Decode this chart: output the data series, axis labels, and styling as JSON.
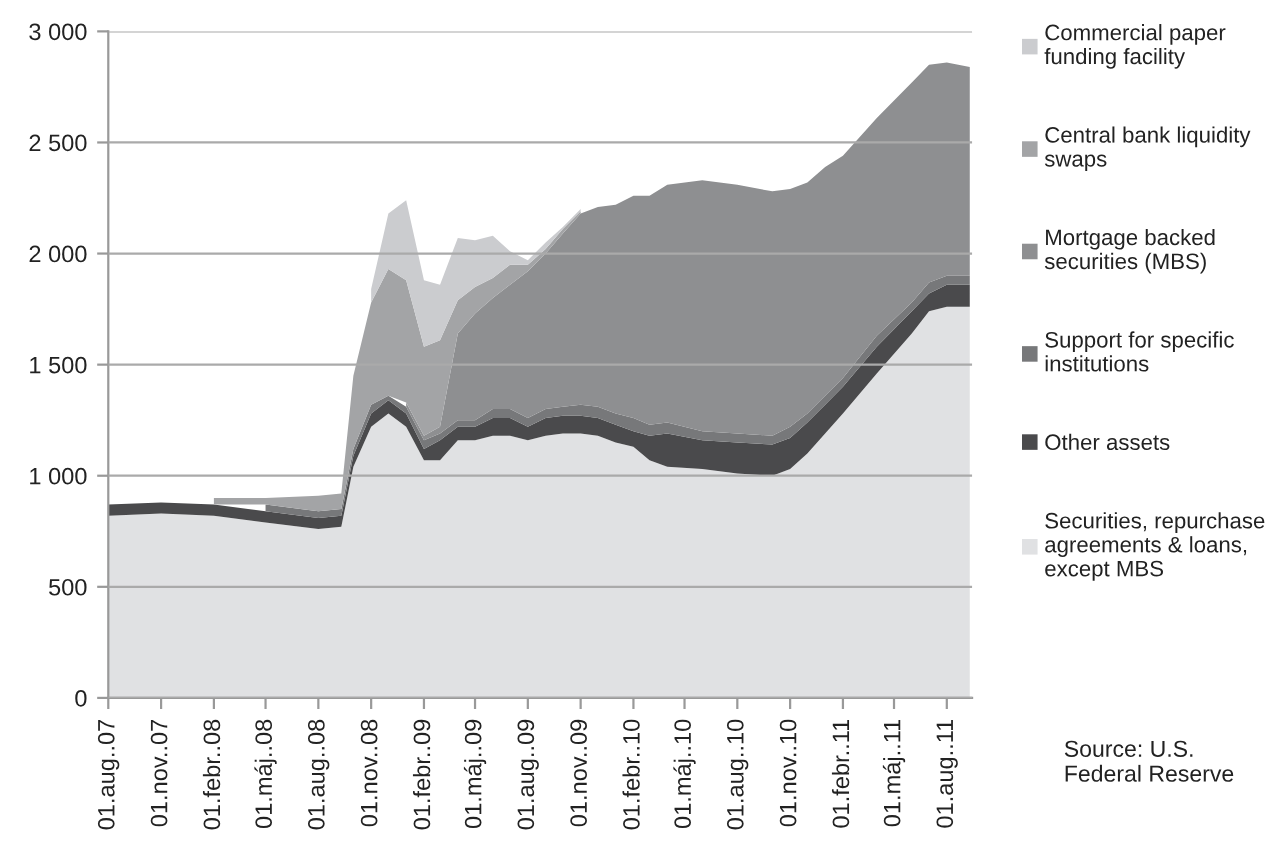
{
  "chart_data": {
    "type": "area",
    "stacked": true,
    "x": [
      "2007-08-01",
      "2007-11-01",
      "2008-02-01",
      "2008-05-01",
      "2008-08-01",
      "2008-09-10",
      "2008-10-01",
      "2008-11-01",
      "2008-12-01",
      "2009-01-01",
      "2009-02-01",
      "2009-03-01",
      "2009-04-01",
      "2009-05-01",
      "2009-06-01",
      "2009-07-01",
      "2009-08-01",
      "2009-09-01",
      "2009-10-01",
      "2009-11-01",
      "2009-12-01",
      "2010-01-01",
      "2010-02-01",
      "2010-03-01",
      "2010-04-01",
      "2010-06-01",
      "2010-08-01",
      "2010-10-01",
      "2010-11-01",
      "2010-12-01",
      "2011-01-01",
      "2011-02-01",
      "2011-04-01",
      "2011-06-01",
      "2011-07-01",
      "2011-08-01",
      "2011-09-10"
    ],
    "series": [
      {
        "name": "Securities, repurchase\nagreements & loans,\nexcept MBS",
        "color": "#e0e1e3",
        "values": [
          820,
          830,
          820,
          790,
          760,
          770,
          1040,
          1220,
          1280,
          1220,
          1070,
          1070,
          1160,
          1160,
          1180,
          1180,
          1160,
          1180,
          1190,
          1190,
          1180,
          1150,
          1130,
          1070,
          1040,
          1030,
          1010,
          1000,
          1030,
          1100,
          1190,
          1280,
          1460,
          1640,
          1740,
          1760,
          1760
        ]
      },
      {
        "name": "Other assets",
        "color": "#4a4a4c",
        "values": [
          50,
          50,
          50,
          50,
          50,
          50,
          50,
          60,
          60,
          60,
          50,
          90,
          60,
          60,
          80,
          80,
          60,
          80,
          80,
          80,
          80,
          80,
          70,
          110,
          150,
          130,
          140,
          140,
          140,
          140,
          130,
          120,
          120,
          100,
          80,
          100,
          100
        ]
      },
      {
        "name": "Support for specific\ninstitutions",
        "color": "#77787a",
        "values": [
          null,
          null,
          null,
          30,
          30,
          30,
          30,
          40,
          20,
          30,
          40,
          30,
          30,
          30,
          40,
          40,
          40,
          40,
          40,
          50,
          50,
          50,
          60,
          50,
          50,
          40,
          40,
          40,
          50,
          40,
          40,
          40,
          50,
          40,
          50,
          40,
          40
        ]
      },
      {
        "name": "Mortgage backed\nsecurities (MBS)",
        "color": "#8e8f91",
        "values": [
          null,
          null,
          null,
          null,
          null,
          null,
          null,
          null,
          null,
          20,
          20,
          30,
          390,
          480,
          500,
          560,
          660,
          700,
          780,
          860,
          900,
          940,
          1000,
          1030,
          1070,
          1130,
          1120,
          1100,
          1070,
          1040,
          1030,
          1000,
          980,
          990,
          980,
          960,
          940
        ]
      },
      {
        "name": "Central bank liquidity\nswaps",
        "color": "#a3a4a6",
        "values": [
          null,
          null,
          30,
          30,
          70,
          70,
          330,
          460,
          570,
          550,
          400,
          390,
          150,
          120,
          90,
          90,
          30,
          20,
          20,
          10,
          null,
          null,
          null,
          null,
          null,
          null,
          null,
          null,
          null,
          null,
          null,
          null,
          null,
          null,
          null,
          null,
          null
        ]
      },
      {
        "name": "Commercial paper\nfunding facility",
        "color": "#cbcccf",
        "values": [
          null,
          null,
          null,
          null,
          null,
          null,
          null,
          60,
          250,
          360,
          300,
          250,
          280,
          210,
          190,
          60,
          20,
          30,
          10,
          10,
          null,
          null,
          null,
          null,
          null,
          null,
          null,
          null,
          null,
          null,
          null,
          null,
          null,
          null,
          null,
          null,
          null
        ]
      }
    ],
    "xlim": [
      "2007-08-01",
      "2011-09-14"
    ],
    "xticks": [
      {
        "value": "2007-08-01",
        "label": "01.aug..07"
      },
      {
        "value": "2007-11-01",
        "label": "01.nov..07"
      },
      {
        "value": "2008-02-01",
        "label": "01.febr..08"
      },
      {
        "value": "2008-05-01",
        "label": "01.máj..08"
      },
      {
        "value": "2008-08-01",
        "label": "01.aug..08"
      },
      {
        "value": "2008-11-01",
        "label": "01.nov..08"
      },
      {
        "value": "2009-02-01",
        "label": "01.febr..09"
      },
      {
        "value": "2009-05-01",
        "label": "01.máj..09"
      },
      {
        "value": "2009-08-01",
        "label": "01.aug..09"
      },
      {
        "value": "2009-11-01",
        "label": "01.nov..09"
      },
      {
        "value": "2010-02-01",
        "label": "01.febr..10"
      },
      {
        "value": "2010-05-01",
        "label": "01.máj..10"
      },
      {
        "value": "2010-08-01",
        "label": "01.aug..10"
      },
      {
        "value": "2010-11-01",
        "label": "01.nov..10"
      },
      {
        "value": "2011-02-01",
        "label": "01.febr..11"
      },
      {
        "value": "2011-05-01",
        "label": "01.máj..11"
      },
      {
        "value": "2011-08-01",
        "label": "01.aug..11"
      }
    ],
    "ylim": [
      0,
      3000
    ],
    "yticks": [
      0,
      500,
      {
        "value": 1000,
        "label": "1 000"
      },
      {
        "value": 1500,
        "label": "1 500"
      },
      {
        "value": 2000,
        "label": "2 000"
      },
      {
        "value": 2500,
        "label": "2 500"
      },
      {
        "value": 3000,
        "label": "3 000"
      }
    ],
    "grid": "y",
    "legend": "right",
    "annotations": [
      "Source: U.S.\nFederal Reserve"
    ]
  }
}
